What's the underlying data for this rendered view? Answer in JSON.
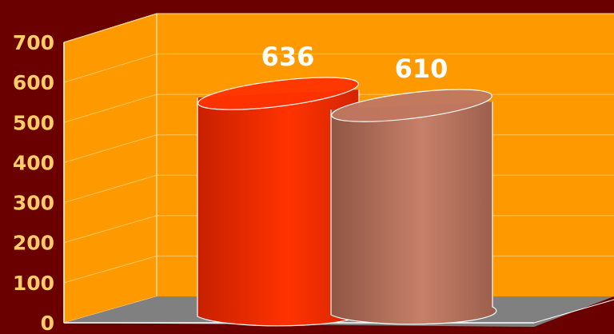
{
  "colors": {
    "background": "#6b0000",
    "wall_back": "#ff9900",
    "wall_side": "#ff9900",
    "floor": "#808080",
    "tick_text": "#ffcc66",
    "value_text": "#ffffff",
    "grid": "#ffd27a"
  },
  "chart_data": {
    "type": "bar",
    "title": "",
    "xlabel": "",
    "ylabel": "",
    "ylim": [
      0,
      700
    ],
    "yticks": [
      "0",
      "100",
      "200",
      "300",
      "400",
      "500",
      "600",
      "700"
    ],
    "grid": true,
    "legend": "none",
    "series": [
      {
        "value": 636,
        "label": "636",
        "color": "#ff3300"
      },
      {
        "value": 610,
        "label": "610",
        "color": "#c07860"
      }
    ]
  }
}
